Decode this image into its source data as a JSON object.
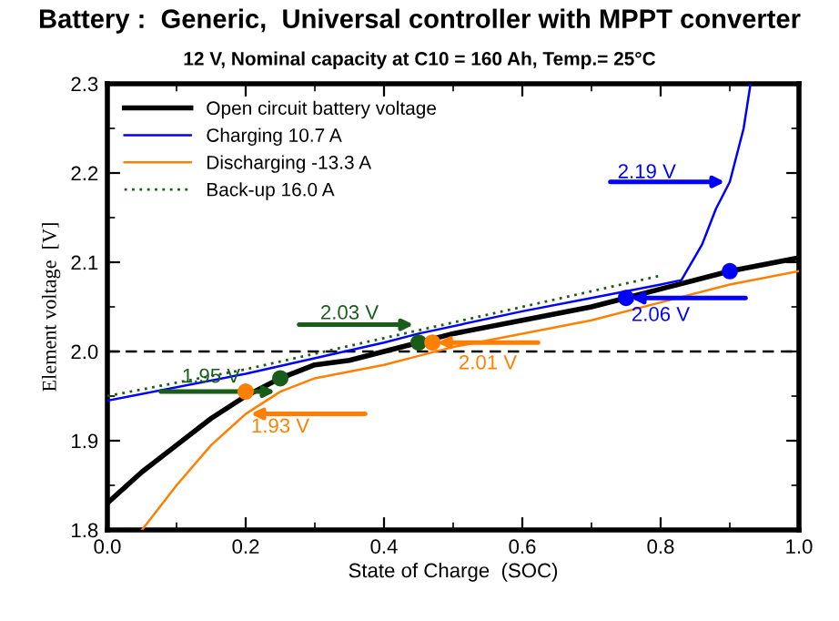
{
  "chart_data": {
    "type": "line",
    "title": "Battery :  Generic,  Universal controller with MPPT converter",
    "subtitle": "12 V, Nominal capacity at C10 = 160 Ah, Temp.= 25°C",
    "xlabel": "State of Charge  (SOC)",
    "ylabel": "Element voltage  [V]",
    "xlim": [
      0,
      1
    ],
    "ylim": [
      1.8,
      2.3
    ],
    "xticks": [
      {
        "value": 0,
        "label": "0.0"
      },
      0.2,
      0.4,
      0.6,
      0.8,
      {
        "value": 1,
        "label": "1.0"
      }
    ],
    "yticks": [
      1.8,
      1.9,
      {
        "value": 2,
        "label": "2.0"
      },
      2.1,
      2.2,
      2.3
    ],
    "grid": false,
    "legend": "top left",
    "marker": "none",
    "series": [
      {
        "name": "Open circuit battery voltage",
        "color": "#000000",
        "line_style": "solid",
        "x": [
          0,
          0.05,
          0.1,
          0.15,
          0.2,
          0.25,
          0.3,
          0.35,
          0.4,
          0.45,
          0.5,
          0.6,
          0.7,
          0.75,
          0.8,
          0.9,
          1.0
        ],
        "values": [
          1.83,
          1.865,
          1.895,
          1.925,
          1.95,
          1.97,
          1.985,
          1.99,
          2.0,
          2.01,
          2.02,
          2.035,
          2.05,
          2.06,
          2.07,
          2.09,
          2.105
        ]
      },
      {
        "name": "Charging 10.7 A",
        "color": "#0000ff",
        "line_style": "solid",
        "x": [
          0,
          0.2,
          0.4,
          0.45,
          0.6,
          0.7,
          0.8,
          0.83,
          0.86,
          0.88,
          0.9,
          0.92,
          0.93
        ],
        "values": [
          1.945,
          1.975,
          2.01,
          2.02,
          2.045,
          2.06,
          2.075,
          2.08,
          2.12,
          2.16,
          2.19,
          2.25,
          2.3
        ]
      },
      {
        "name": "Discharging -13.3 A",
        "color": "#ff8000",
        "line_style": "solid",
        "x": [
          0.05,
          0.1,
          0.15,
          0.2,
          0.25,
          0.3,
          0.4,
          0.45,
          0.5,
          0.6,
          0.7,
          0.8,
          0.9,
          1.0
        ],
        "values": [
          1.8,
          1.85,
          1.895,
          1.93,
          1.955,
          1.97,
          1.985,
          1.995,
          2.005,
          2.02,
          2.035,
          2.055,
          2.075,
          2.09
        ]
      },
      {
        "name": "Back-up 16.0 A",
        "color": "#1a5c1a",
        "line_style": "dotted",
        "x": [
          0,
          0.2,
          0.4,
          0.6,
          0.8
        ],
        "values": [
          1.95,
          1.98,
          2.015,
          2.05,
          2.085
        ]
      },
      {
        "type": "scatter",
        "marker": "circle",
        "color": "#0000ff",
        "x": [
          0.75,
          0.9
        ],
        "values": [
          2.06,
          2.09
        ]
      },
      {
        "type": "scatter",
        "marker": "circle",
        "color": "#1a5c1a",
        "x": [
          0.25,
          0.45
        ],
        "values": [
          1.97,
          2.01
        ]
      },
      {
        "type": "scatter",
        "marker": "circle",
        "color": "#ff8000",
        "x": [
          0.2,
          0.47
        ],
        "values": [
          1.955,
          2.01
        ]
      }
    ],
    "ref_lines": [
      {
        "axis": "y",
        "value": 2.0,
        "color": "#000000",
        "line_style": "dashed"
      }
    ],
    "annotations": [
      {
        "text": "2.19 V",
        "x": 0.9,
        "y": 2.19
      },
      {
        "text": "2.06 V",
        "x": 0.75,
        "y": 2.06
      },
      {
        "text": "2.03 V",
        "x": 0.45,
        "y": 2.03
      },
      {
        "text": "1.95 V",
        "x": 0.25,
        "y": 1.955
      },
      {
        "text": "2.01 V",
        "x": 0.47,
        "y": 2.01
      },
      {
        "text": "1.93 V",
        "x": 0.2,
        "y": 1.93
      }
    ]
  }
}
